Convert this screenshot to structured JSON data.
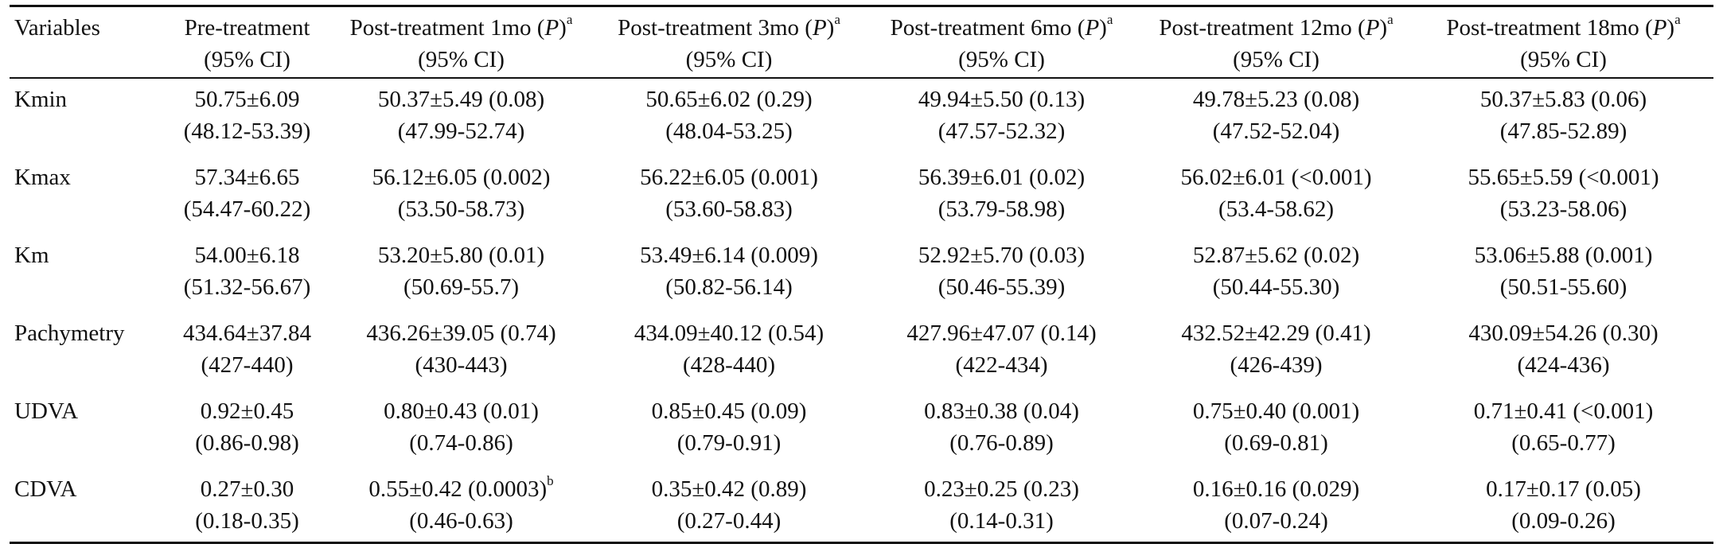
{
  "table": {
    "header": {
      "variables": "Variables",
      "columns": [
        {
          "line1": "Pre-treatment",
          "has_p": false,
          "sup": "",
          "line2": "(95% CI)"
        },
        {
          "line1": "Post-treatment 1mo (",
          "has_p": true,
          "p": "P",
          "close": ")",
          "sup": "a",
          "line2": "(95% CI)"
        },
        {
          "line1": "Post-treatment 3mo (",
          "has_p": true,
          "p": "P",
          "close": ")",
          "sup": "a",
          "line2": "(95% CI)"
        },
        {
          "line1": "Post-treatment 6mo (",
          "has_p": true,
          "p": "P",
          "close": ")",
          "sup": "a",
          "line2": "(95% CI)"
        },
        {
          "line1": "Post-treatment 12mo (",
          "has_p": true,
          "p": "P",
          "close": ")",
          "sup": "a",
          "line2": "(95% CI)"
        },
        {
          "line1": "Post-treatment 18mo (",
          "has_p": true,
          "p": "P",
          "close": ")",
          "sup": "a",
          "line2": "(95% CI)"
        }
      ]
    },
    "rows": [
      {
        "variable": "Kmin",
        "cells": [
          {
            "value": "50.75±6.09",
            "sup": "",
            "ci": "(48.12-53.39)"
          },
          {
            "value": "50.37±5.49 (0.08)",
            "sup": "",
            "ci": "(47.99-52.74)"
          },
          {
            "value": "50.65±6.02 (0.29)",
            "sup": "",
            "ci": "(48.04-53.25)"
          },
          {
            "value": "49.94±5.50 (0.13)",
            "sup": "",
            "ci": "(47.57-52.32)"
          },
          {
            "value": "49.78±5.23 (0.08)",
            "sup": "",
            "ci": "(47.52-52.04)"
          },
          {
            "value": "50.37±5.83 (0.06)",
            "sup": "",
            "ci": "(47.85-52.89)"
          }
        ]
      },
      {
        "variable": "Kmax",
        "cells": [
          {
            "value": "57.34±6.65",
            "sup": "",
            "ci": "(54.47-60.22)"
          },
          {
            "value": "56.12±6.05 (0.002)",
            "sup": "",
            "ci": "(53.50-58.73)"
          },
          {
            "value": "56.22±6.05 (0.001)",
            "sup": "",
            "ci": "(53.60-58.83)"
          },
          {
            "value": "56.39±6.01 (0.02)",
            "sup": "",
            "ci": "(53.79-58.98)"
          },
          {
            "value": "56.02±6.01 (<0.001)",
            "sup": "",
            "ci": "(53.4-58.62)"
          },
          {
            "value": "55.65±5.59 (<0.001)",
            "sup": "",
            "ci": "(53.23-58.06)"
          }
        ]
      },
      {
        "variable": "Km",
        "cells": [
          {
            "value": "54.00±6.18",
            "sup": "",
            "ci": "(51.32-56.67)"
          },
          {
            "value": "53.20±5.80 (0.01)",
            "sup": "",
            "ci": "(50.69-55.7)"
          },
          {
            "value": "53.49±6.14 (0.009)",
            "sup": "",
            "ci": "(50.82-56.14)"
          },
          {
            "value": "52.92±5.70 (0.03)",
            "sup": "",
            "ci": "(50.46-55.39)"
          },
          {
            "value": "52.87±5.62 (0.02)",
            "sup": "",
            "ci": "(50.44-55.30)"
          },
          {
            "value": "53.06±5.88 (0.001)",
            "sup": "",
            "ci": "(50.51-55.60)"
          }
        ]
      },
      {
        "variable": "Pachymetry",
        "cells": [
          {
            "value": "434.64±37.84",
            "sup": "",
            "ci": "(427-440)"
          },
          {
            "value": "436.26±39.05 (0.74)",
            "sup": "",
            "ci": "(430-443)"
          },
          {
            "value": "434.09±40.12 (0.54)",
            "sup": "",
            "ci": "(428-440)"
          },
          {
            "value": "427.96±47.07 (0.14)",
            "sup": "",
            "ci": "(422-434)"
          },
          {
            "value": "432.52±42.29 (0.41)",
            "sup": "",
            "ci": "(426-439)"
          },
          {
            "value": "430.09±54.26 (0.30)",
            "sup": "",
            "ci": "(424-436)"
          }
        ]
      },
      {
        "variable": "UDVA",
        "cells": [
          {
            "value": "0.92±0.45",
            "sup": "",
            "ci": "(0.86-0.98)"
          },
          {
            "value": "0.80±0.43 (0.01)",
            "sup": "",
            "ci": "(0.74-0.86)"
          },
          {
            "value": "0.85±0.45 (0.09)",
            "sup": "",
            "ci": "(0.79-0.91)"
          },
          {
            "value": "0.83±0.38 (0.04)",
            "sup": "",
            "ci": "(0.76-0.89)"
          },
          {
            "value": "0.75±0.40 (0.001)",
            "sup": "",
            "ci": "(0.69-0.81)"
          },
          {
            "value": "0.71±0.41 (<0.001)",
            "sup": "",
            "ci": "(0.65-0.77)"
          }
        ]
      },
      {
        "variable": "CDVA",
        "cells": [
          {
            "value": "0.27±0.30",
            "sup": "",
            "ci": "(0.18-0.35)"
          },
          {
            "value": "0.55±0.42 (0.0003)",
            "sup": "b",
            "ci": "(0.46-0.63)"
          },
          {
            "value": "0.35±0.42 (0.89)",
            "sup": "",
            "ci": "(0.27-0.44)"
          },
          {
            "value": "0.23±0.25 (0.23)",
            "sup": "",
            "ci": "(0.14-0.31)"
          },
          {
            "value": "0.16±0.16 (0.029)",
            "sup": "",
            "ci": "(0.07-0.24)"
          },
          {
            "value": "0.17±0.17 (0.05)",
            "sup": "",
            "ci": "(0.09-0.26)"
          }
        ]
      }
    ]
  }
}
